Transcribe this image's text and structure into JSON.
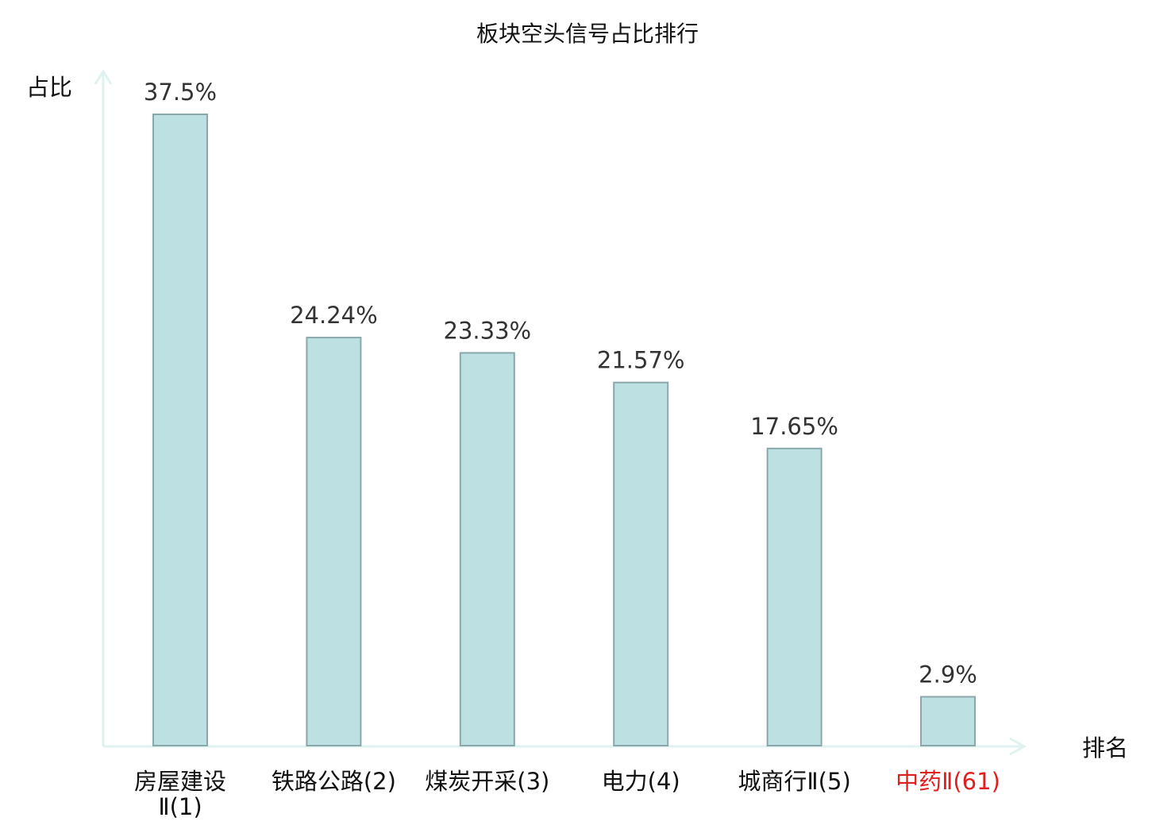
{
  "chart_data": {
    "type": "bar",
    "title": "板块空头信号占比排行",
    "ylabel": "占比",
    "xlabel": "排名",
    "ylim": [
      0,
      40
    ],
    "grid": false,
    "categories": [
      "房屋建设Ⅱ(1)",
      "铁路公路(2)",
      "煤炭开采(3)",
      "电力(4)",
      "城商行Ⅱ(5)",
      "中药Ⅱ(61)"
    ],
    "category_lines": [
      [
        "房屋建设",
        "Ⅱ(1)"
      ],
      [
        "铁路公路(2)"
      ],
      [
        "煤炭开采(3)"
      ],
      [
        "电力(4)"
      ],
      [
        "城商行Ⅱ(5)"
      ],
      [
        "中药Ⅱ(61)"
      ]
    ],
    "values": [
      37.5,
      24.24,
      23.33,
      21.57,
      17.65,
      2.9
    ],
    "value_labels": [
      "37.5%",
      "24.24%",
      "23.33%",
      "21.57%",
      "17.65%",
      "2.9%"
    ],
    "highlight_index": 5,
    "colors": {
      "bar_fill": "#bde0e3",
      "bar_stroke": "#8aa8ab",
      "axis": "#e0f2ef",
      "text": "#333333",
      "label_text": "#111111",
      "highlight_text": "#e02020"
    }
  }
}
